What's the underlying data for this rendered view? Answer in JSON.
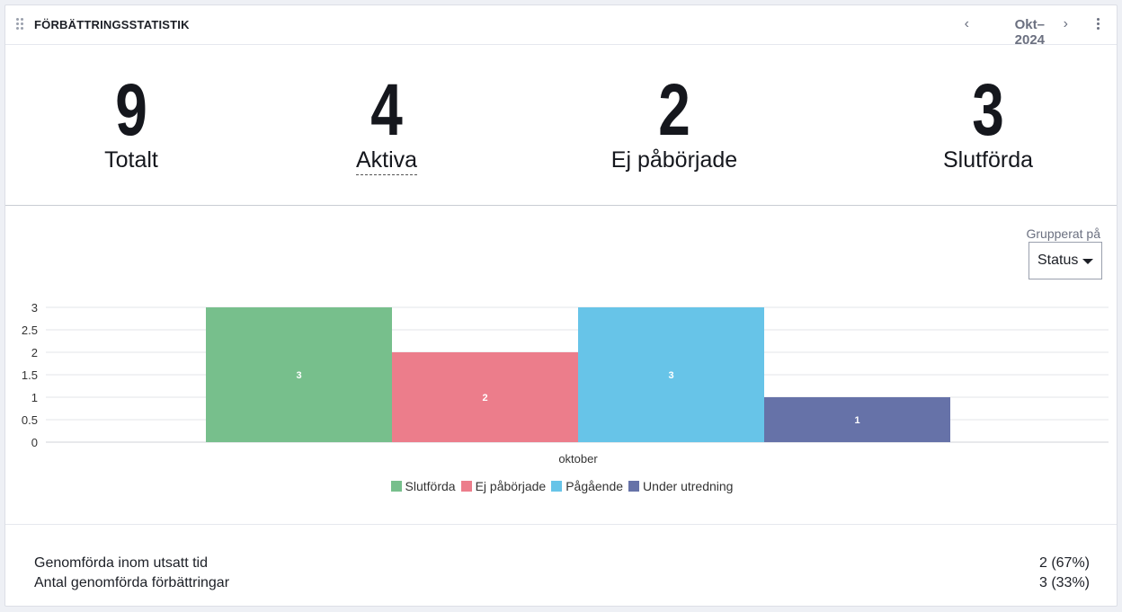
{
  "header": {
    "title": "FÖRBÄTTRINGSSTATISTIK",
    "period": "Okt–2024",
    "prev_icon": "chevron-left-icon",
    "next_icon": "chevron-right-icon",
    "menu_icon": "more-vertical-icon",
    "drag_icon": "drag-handle-icon"
  },
  "stats": [
    {
      "value": "9",
      "label": "Totalt"
    },
    {
      "value": "4",
      "label": "Aktiva"
    },
    {
      "value": "2",
      "label": "Ej påbörjade"
    },
    {
      "value": "3",
      "label": "Slutförda"
    }
  ],
  "groupby": {
    "label": "Grupperat på",
    "value": "Status"
  },
  "chart_data": {
    "type": "bar",
    "categories": [
      "oktober"
    ],
    "series": [
      {
        "name": "Slutförda",
        "values": [
          3
        ],
        "color": "#77bf8c"
      },
      {
        "name": "Ej påbörjade",
        "values": [
          2
        ],
        "color": "#ec7d8b"
      },
      {
        "name": "Pågående",
        "values": [
          3
        ],
        "color": "#67c4e8"
      },
      {
        "name": "Under utredning",
        "values": [
          1
        ],
        "color": "#6672a8"
      }
    ],
    "yticks": [
      "0",
      "0.5",
      "1",
      "1.5",
      "2",
      "2.5",
      "3"
    ],
    "ylim": [
      0,
      3
    ],
    "grid": true,
    "legend": "bottom"
  },
  "footer": {
    "rows": [
      {
        "label": "Genomförda inom utsatt tid",
        "value": "2 (67%)"
      },
      {
        "label": "Antal genomförda förbättringar",
        "value": "3 (33%)"
      }
    ]
  }
}
